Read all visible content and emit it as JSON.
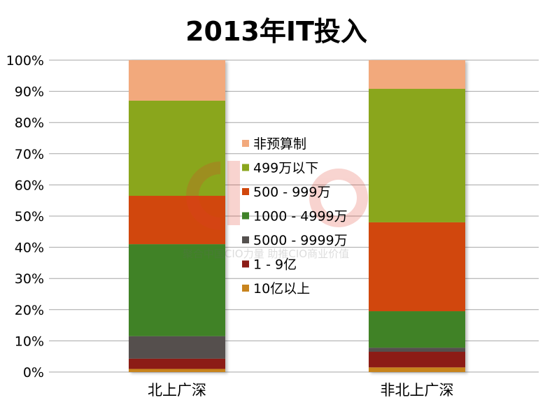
{
  "chart_data": {
    "type": "bar",
    "stacked": true,
    "percent": true,
    "title": "2013年IT投入",
    "categories": [
      "北上广深",
      "非北上广深"
    ],
    "y_ticks": [
      "0%",
      "10%",
      "20%",
      "30%",
      "40%",
      "50%",
      "60%",
      "70%",
      "80%",
      "90%",
      "100%"
    ],
    "ylim": [
      0,
      100
    ],
    "grid": true,
    "legend_position": "center",
    "series": [
      {
        "name": "10亿以上",
        "color": "#c8841e",
        "values": [
          1.0,
          1.5
        ]
      },
      {
        "name": "1 - 9亿",
        "color": "#8c1c16",
        "values": [
          3.3,
          5.0
        ]
      },
      {
        "name": "5000 - 9999万",
        "color": "#54504e",
        "values": [
          7.2,
          1.3
        ]
      },
      {
        "name": "1000 - 4999万",
        "color": "#3f8228",
        "values": [
          29.5,
          11.7
        ]
      },
      {
        "name": "500 - 999万",
        "color": "#d1470c",
        "values": [
          15.5,
          28.5
        ]
      },
      {
        "name": "499万以下",
        "color": "#8aa61e",
        "values": [
          30.5,
          42.8
        ]
      },
      {
        "name": "非预算制",
        "color": "#f2a97c",
        "values": [
          13.0,
          9.2
        ]
      }
    ],
    "watermark_text": "聚合中国CIO力量  助推CIO商业价值"
  }
}
